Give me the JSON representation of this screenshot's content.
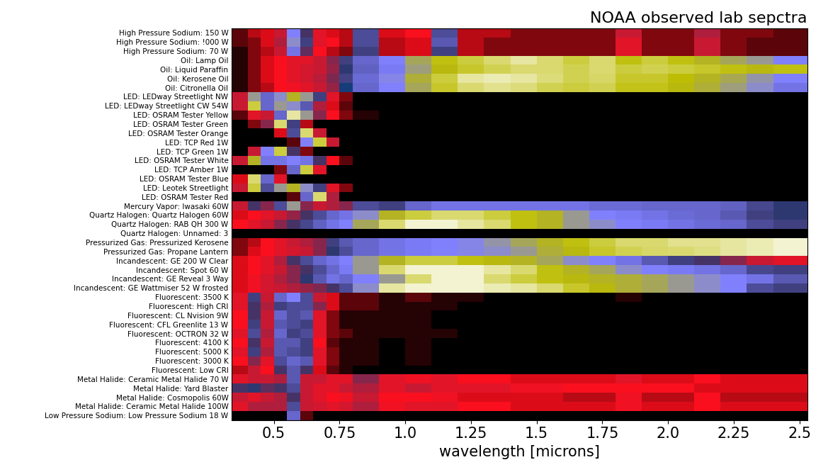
{
  "chart_data": {
    "type": "heatmap",
    "title": "NOAA observed lab sepctra",
    "x_label": "wavelength [microns]",
    "categories": [
      "High Pressure Sodium: 150 W",
      "High Pressure Sodium: !000 W",
      "High Pressure Sodium: 70 W",
      "Oil: Lamp Oil",
      "Oil: Liquid Paraffin",
      "Oil: Kerosene Oil",
      "Oil: Citronella Oil",
      "LED: LEDway Streetlight NW",
      "LED: LEDway Streetlight CW 54W",
      "LED: OSRAM Tester Yellow",
      "LED: OSRAM Tester Green",
      "LED: OSRAM Tester Orange",
      "LED: TCP Red 1W",
      "LED: TCP Green 1W",
      "LED: OSRAM Tester White",
      "LED: TCP Amber 1W",
      "LED: OSRAM Tester Blue",
      "LED: Leotek Streetlight",
      "LED: OSRAM Tester Red",
      "Mercury Vapor: Iwasaki 60W",
      "Quartz Halogen: Quartz Halogen 60W",
      "Quartz Halogen: RAB QH 300 W",
      "Quartz Halogen: Unnamed: 3",
      "Pressurized Gas: Pressurized Kerosene",
      "Pressurized Gas: Propane Lantern",
      "Incandescent: GE 200 W Clear",
      "Incandescent: Spot 60 W",
      "Incandescent: GE Reveal 3 Way",
      "Incandescent: GE Wattmiser 52 W frosted",
      "Fluorescent: 3500 K",
      "Fluorescent: High CRI",
      "Fluorescent: CL Nvision 9W",
      "Fluorescent: CFL Greenlite 13 W",
      "Fluorescent: OCTRON 32 W",
      "Fluorescent: 4100 K",
      "Fluorescent: 5000 K",
      "Fluorescent: 3000 K",
      "Fluorescent: Low CRI",
      "Metal Halide: Ceramic Metal Halide 70 W",
      "Metal Halide: Yard Blaster",
      "Metal Halide: Cosmopolis 60W",
      "Metal Halide: Ceramic Metal Halide 100W",
      "Low Pressure Sodium: Low Pressure Sodium 18 W"
    ],
    "x_edges": [
      0.34,
      0.4,
      0.45,
      0.5,
      0.55,
      0.6,
      0.65,
      0.7,
      0.75,
      0.8,
      0.9,
      1.0,
      1.1,
      1.2,
      1.3,
      1.4,
      1.5,
      1.6,
      1.7,
      1.8,
      1.9,
      2.0,
      2.1,
      2.2,
      2.3,
      2.4,
      2.53
    ],
    "xlim": [
      0.34,
      2.53
    ],
    "xticks": [
      0.5,
      0.75,
      {
        "value": 1.0,
        "label": "1.0"
      },
      1.25,
      1.5,
      1.75,
      {
        "value": 2.0,
        "label": "2.0"
      },
      2.25,
      2.5
    ],
    "color_range": [
      0,
      100
    ],
    "cells": [
      [
        2,
        4,
        5,
        10,
        50,
        20,
        8,
        5,
        4,
        30,
        5,
        6,
        30,
        4,
        4,
        3,
        3,
        3,
        3,
        10,
        3,
        3,
        12,
        3,
        3,
        2
      ],
      [
        2,
        3,
        5,
        12,
        55,
        25,
        8,
        6,
        4,
        30,
        4,
        5,
        35,
        4,
        3,
        3,
        3,
        3,
        3,
        8,
        3,
        3,
        10,
        3,
        2,
        2
      ],
      [
        1,
        3,
        4,
        10,
        45,
        18,
        6,
        4,
        3,
        25,
        4,
        5,
        25,
        4,
        3,
        3,
        3,
        3,
        3,
        8,
        3,
        3,
        10,
        3,
        2,
        2
      ],
      [
        1,
        3,
        5,
        6,
        8,
        8,
        10,
        15,
        25,
        40,
        50,
        65,
        75,
        80,
        85,
        90,
        85,
        80,
        85,
        75,
        80,
        75,
        70,
        65,
        60,
        50
      ],
      [
        1,
        3,
        5,
        6,
        8,
        9,
        10,
        14,
        22,
        38,
        48,
        62,
        72,
        78,
        82,
        85,
        85,
        82,
        85,
        80,
        82,
        80,
        78,
        75,
        72,
        75
      ],
      [
        1,
        3,
        5,
        6,
        8,
        9,
        11,
        16,
        26,
        42,
        52,
        68,
        80,
        90,
        92,
        90,
        86,
        82,
        84,
        78,
        78,
        74,
        70,
        66,
        58,
        50
      ],
      [
        1,
        3,
        4,
        6,
        7,
        8,
        10,
        14,
        24,
        40,
        50,
        65,
        78,
        85,
        88,
        86,
        82,
        80,
        82,
        76,
        76,
        72,
        68,
        62,
        55,
        45
      ],
      [
        10,
        60,
        40,
        55,
        70,
        60,
        25,
        8,
        3,
        0,
        0,
        0,
        0,
        0,
        0,
        0,
        0,
        0,
        0,
        0,
        0,
        0,
        0,
        0,
        0,
        0
      ],
      [
        10,
        80,
        40,
        60,
        55,
        35,
        12,
        5,
        2,
        0,
        0,
        0,
        0,
        0,
        0,
        0,
        0,
        0,
        0,
        0,
        0,
        0,
        0,
        0,
        0,
        0
      ],
      [
        2,
        8,
        10,
        40,
        90,
        60,
        15,
        6,
        3,
        1,
        0,
        0,
        0,
        0,
        0,
        0,
        0,
        0,
        0,
        0,
        0,
        0,
        0,
        0,
        0,
        0
      ],
      [
        0,
        3,
        15,
        85,
        25,
        4,
        0,
        0,
        0,
        0,
        0,
        0,
        0,
        0,
        0,
        0,
        0,
        0,
        0,
        0,
        0,
        0,
        0,
        0,
        0,
        0
      ],
      [
        0,
        0,
        0,
        5,
        30,
        85,
        10,
        0,
        0,
        0,
        0,
        0,
        0,
        0,
        0,
        0,
        0,
        0,
        0,
        0,
        0,
        0,
        0,
        0,
        0,
        0
      ],
      [
        0,
        0,
        0,
        0,
        2,
        50,
        80,
        10,
        0,
        0,
        0,
        0,
        0,
        0,
        0,
        0,
        0,
        0,
        0,
        0,
        0,
        0,
        0,
        0,
        0,
        0
      ],
      [
        0,
        10,
        50,
        80,
        20,
        3,
        0,
        0,
        0,
        0,
        0,
        0,
        0,
        0,
        0,
        0,
        0,
        0,
        0,
        0,
        0,
        0,
        0,
        0,
        0,
        0
      ],
      [
        10,
        70,
        45,
        45,
        50,
        45,
        20,
        6,
        2,
        0,
        0,
        0,
        0,
        0,
        0,
        0,
        0,
        0,
        0,
        0,
        0,
        0,
        0,
        0,
        0,
        0
      ],
      [
        0,
        0,
        0,
        3,
        40,
        80,
        8,
        0,
        0,
        0,
        0,
        0,
        0,
        0,
        0,
        0,
        0,
        0,
        0,
        0,
        0,
        0,
        0,
        0,
        0,
        0
      ],
      [
        5,
        85,
        40,
        8,
        0,
        0,
        0,
        0,
        0,
        0,
        0,
        0,
        0,
        0,
        0,
        0,
        0,
        0,
        0,
        0,
        0,
        0,
        0,
        0,
        0,
        0
      ],
      [
        10,
        80,
        30,
        60,
        70,
        55,
        25,
        8,
        3,
        0,
        0,
        0,
        0,
        0,
        0,
        0,
        0,
        0,
        0,
        0,
        0,
        0,
        0,
        0,
        0,
        0
      ],
      [
        0,
        0,
        0,
        0,
        2,
        40,
        85,
        12,
        0,
        0,
        0,
        0,
        0,
        0,
        0,
        0,
        0,
        0,
        0,
        0,
        0,
        0,
        0,
        0,
        0,
        0
      ],
      [
        10,
        20,
        15,
        30,
        60,
        15,
        10,
        12,
        15,
        30,
        25,
        40,
        45,
        45,
        45,
        45,
        45,
        45,
        42,
        42,
        40,
        40,
        40,
        38,
        28,
        22
      ],
      [
        5,
        6,
        8,
        10,
        14,
        20,
        30,
        40,
        45,
        55,
        70,
        80,
        85,
        85,
        80,
        75,
        70,
        60,
        50,
        48,
        45,
        42,
        40,
        35,
        25,
        22
      ],
      [
        6,
        8,
        10,
        15,
        20,
        28,
        38,
        45,
        50,
        65,
        85,
        95,
        95,
        90,
        85,
        75,
        70,
        60,
        55,
        50,
        48,
        45,
        42,
        40,
        30,
        25
      ],
      [
        0,
        0,
        0,
        0,
        0,
        0,
        0,
        0,
        0,
        0,
        0,
        0,
        0,
        0,
        0,
        0,
        0,
        0,
        0,
        0,
        0,
        0,
        0,
        0,
        0,
        0
      ],
      [
        3,
        4,
        6,
        8,
        10,
        12,
        15,
        25,
        35,
        40,
        45,
        48,
        50,
        52,
        58,
        65,
        70,
        75,
        80,
        85,
        85,
        88,
        88,
        90,
        92,
        95
      ],
      [
        3,
        5,
        6,
        8,
        9,
        10,
        15,
        22,
        30,
        40,
        45,
        48,
        50,
        52,
        55,
        60,
        68,
        72,
        78,
        82,
        84,
        85,
        87,
        90,
        92,
        95
      ],
      [
        5,
        6,
        8,
        12,
        20,
        30,
        40,
        45,
        50,
        60,
        70,
        80,
        80,
        75,
        72,
        70,
        65,
        55,
        50,
        45,
        35,
        25,
        20,
        15,
        10,
        8
      ],
      [
        5,
        6,
        8,
        10,
        15,
        20,
        30,
        40,
        48,
        60,
        85,
        95,
        95,
        95,
        90,
        85,
        75,
        70,
        65,
        55,
        50,
        48,
        45,
        40,
        28,
        25
      ],
      [
        5,
        7,
        9,
        12,
        15,
        22,
        35,
        45,
        40,
        50,
        60,
        85,
        95,
        95,
        85,
        80,
        75,
        72,
        70,
        68,
        65,
        60,
        55,
        50,
        45,
        35
      ],
      [
        5,
        7,
        9,
        10,
        12,
        14,
        16,
        20,
        30,
        55,
        90,
        95,
        95,
        95,
        92,
        90,
        85,
        78,
        72,
        68,
        65,
        60,
        55,
        50,
        30,
        25
      ],
      [
        8,
        25,
        10,
        40,
        50,
        30,
        10,
        5,
        2,
        2,
        1,
        2,
        1,
        1,
        0,
        0,
        0,
        0,
        0,
        1,
        0,
        0,
        0,
        0,
        0,
        0
      ],
      [
        8,
        20,
        12,
        25,
        30,
        30,
        15,
        5,
        2,
        2,
        1,
        1,
        1,
        0,
        0,
        0,
        0,
        0,
        0,
        0,
        0,
        0,
        0,
        0,
        0,
        0
      ],
      [
        6,
        20,
        10,
        40,
        30,
        35,
        8,
        3,
        1,
        1,
        1,
        1,
        0,
        0,
        0,
        0,
        0,
        0,
        0,
        0,
        0,
        0,
        0,
        0,
        0,
        0
      ],
      [
        6,
        25,
        10,
        35,
        30,
        25,
        8,
        3,
        1,
        1,
        1,
        1,
        0,
        0,
        0,
        0,
        0,
        0,
        0,
        0,
        0,
        0,
        0,
        0,
        0,
        0
      ],
      [
        8,
        30,
        12,
        40,
        25,
        30,
        8,
        3,
        2,
        1,
        1,
        1,
        1,
        0,
        0,
        0,
        0,
        0,
        0,
        0,
        0,
        0,
        0,
        0,
        0,
        0
      ],
      [
        6,
        20,
        10,
        35,
        35,
        25,
        6,
        2,
        1,
        1,
        0,
        1,
        0,
        0,
        0,
        0,
        0,
        0,
        0,
        0,
        0,
        0,
        0,
        0,
        0,
        0
      ],
      [
        8,
        25,
        12,
        35,
        30,
        25,
        8,
        3,
        1,
        1,
        0,
        1,
        0,
        0,
        0,
        0,
        0,
        0,
        0,
        0,
        0,
        0,
        0,
        0,
        0,
        0
      ],
      [
        6,
        15,
        8,
        30,
        40,
        35,
        8,
        3,
        1,
        1,
        0,
        1,
        0,
        0,
        0,
        0,
        0,
        0,
        0,
        0,
        0,
        0,
        0,
        0,
        0,
        0
      ],
      [
        4,
        10,
        6,
        20,
        35,
        20,
        5,
        2,
        1,
        0,
        0,
        0,
        0,
        0,
        0,
        0,
        0,
        0,
        0,
        0,
        0,
        0,
        0,
        0,
        0,
        0
      ],
      [
        8,
        10,
        10,
        12,
        35,
        10,
        10,
        8,
        8,
        15,
        8,
        7,
        8,
        6,
        6,
        5,
        5,
        5,
        5,
        8,
        5,
        5,
        6,
        5,
        5,
        5
      ],
      [
        20,
        22,
        18,
        20,
        30,
        10,
        8,
        8,
        10,
        12,
        8,
        10,
        8,
        8,
        8,
        7,
        7,
        6,
        6,
        6,
        6,
        6,
        5,
        5,
        5,
        5
      ],
      [
        10,
        8,
        10,
        12,
        20,
        10,
        8,
        6,
        7,
        10,
        6,
        6,
        7,
        5,
        5,
        5,
        5,
        4,
        4,
        7,
        4,
        4,
        6,
        4,
        4,
        4
      ],
      [
        8,
        12,
        12,
        12,
        30,
        10,
        9,
        8,
        9,
        12,
        7,
        8,
        8,
        6,
        6,
        5,
        5,
        5,
        5,
        7,
        5,
        5,
        6,
        5,
        5,
        5
      ],
      [
        0,
        0,
        0,
        0,
        40,
        2,
        0,
        0,
        0,
        0,
        0,
        0,
        0,
        0,
        0,
        0,
        0,
        0,
        0,
        0,
        0,
        0,
        0,
        0,
        0,
        0
      ]
    ]
  }
}
